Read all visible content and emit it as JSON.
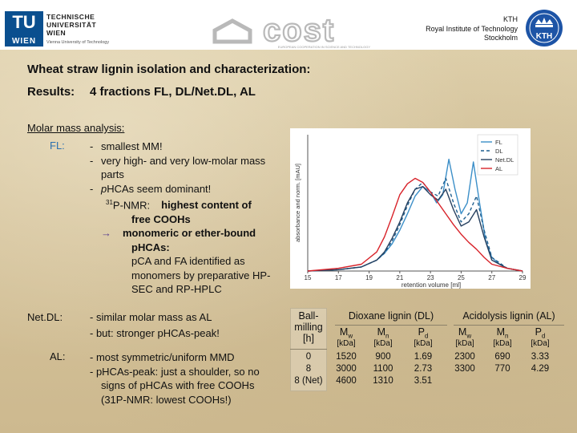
{
  "header": {
    "tu_wordmark": "TU WIEN",
    "tu_name_lines": [
      "TECHNISCHE",
      "UNIVERSITÄT",
      "WIEN"
    ],
    "tu_subtitle": "Vienna University of Technology",
    "cost_wordmark": "cost",
    "cost_tagline": "EUROPEAN COOPERATION IN SCIENCE AND TECHNOLOGY",
    "kth_lines": [
      "KTH",
      "Royal Institute of Technology",
      "Stockholm"
    ],
    "kth_logo_text": "KTH"
  },
  "title": "Wheat straw lignin isolation and characterization:",
  "results": {
    "label": "Results:",
    "value": "4 fractions FL, DL/Net.DL, AL"
  },
  "molar_heading": "Molar mass analysis:",
  "fl": {
    "label": "FL:",
    "b1": "smallest MM!",
    "b2a": "very high- and very low-molar mass",
    "b2b": "parts",
    "b3": "p",
    "b3rest": "HCAs seem dominant!",
    "nmr_sup": "31",
    "nmr_label": "P-NMR:",
    "nmr_value": "highest content of",
    "nmr_value2": "free COOHs",
    "arrow": "→",
    "arrow_text": "monomeric or ether-bound",
    "arrow_text2": "pHCAs:",
    "pca_line1": "pCA and FA identified as",
    "pca_line2": "monomers by preparative HP-",
    "pca_line3": "SEC and RP-HPLC"
  },
  "netdl": {
    "label": "Net.DL:",
    "l1": "-  similar molar mass as AL",
    "l2": "-  but: stronger pHCAs-peak!"
  },
  "al": {
    "label": "AL:",
    "l1": "-  most symmetric/uniform MMD",
    "l2": "-  pHCAs-peak: just a shoulder, so no",
    "l3": "signs of pHCAs with free COOHs",
    "l4": "(31P-NMR: lowest COOHs!)"
  },
  "chart_data": {
    "type": "line",
    "xlabel": "retention volume [ml]",
    "ylabel": "absorbance and norm. [mAU]",
    "xlim": [
      15,
      29
    ],
    "xticks": [
      15,
      17,
      19,
      21,
      23,
      25,
      27,
      29
    ],
    "ylim": [
      0,
      1
    ],
    "legend": [
      "FL",
      "DL",
      "Net.DL",
      "AL"
    ],
    "legend_position": "top-right",
    "grid": false,
    "series": [
      {
        "name": "FL",
        "color": "#3c8fc8",
        "dash": "solid",
        "x": [
          15,
          17,
          18.5,
          19.5,
          20,
          20.5,
          21,
          21.5,
          22,
          22.5,
          23,
          23.4,
          23.8,
          24.2,
          24.6,
          25,
          25.4,
          25.8,
          26.2,
          26.6,
          27,
          27.5,
          28,
          29
        ],
        "y": [
          0.0,
          0.01,
          0.03,
          0.08,
          0.13,
          0.2,
          0.3,
          0.42,
          0.55,
          0.62,
          0.58,
          0.5,
          0.56,
          0.82,
          0.6,
          0.42,
          0.5,
          0.8,
          0.5,
          0.22,
          0.1,
          0.05,
          0.02,
          0.0
        ]
      },
      {
        "name": "DL",
        "color": "#1f5f8f",
        "dash": "4,3",
        "x": [
          15,
          17,
          18.5,
          19.5,
          20,
          20.5,
          21,
          21.5,
          22,
          22.5,
          23,
          23.5,
          24,
          24.5,
          25,
          25.5,
          26,
          26.5,
          27,
          28,
          29
        ],
        "y": [
          0.0,
          0.01,
          0.03,
          0.08,
          0.13,
          0.22,
          0.34,
          0.48,
          0.6,
          0.65,
          0.58,
          0.55,
          0.68,
          0.5,
          0.36,
          0.42,
          0.55,
          0.3,
          0.1,
          0.02,
          0.0
        ]
      },
      {
        "name": "Net.DL",
        "color": "#27405f",
        "dash": "solid",
        "x": [
          15,
          17,
          18.5,
          19.5,
          20,
          20.5,
          21,
          21.5,
          22,
          22.5,
          23,
          23.5,
          24,
          24.5,
          25,
          25.5,
          26,
          26.5,
          27,
          28,
          29
        ],
        "y": [
          0.0,
          0.01,
          0.03,
          0.08,
          0.14,
          0.24,
          0.36,
          0.5,
          0.6,
          0.62,
          0.56,
          0.52,
          0.6,
          0.45,
          0.33,
          0.36,
          0.45,
          0.25,
          0.08,
          0.02,
          0.0
        ]
      },
      {
        "name": "AL",
        "color": "#d8232a",
        "dash": "solid",
        "x": [
          15,
          17,
          18.5,
          19.5,
          20,
          20.5,
          21,
          21.5,
          22,
          22.5,
          23,
          23.5,
          24,
          24.5,
          25,
          25.5,
          26,
          26.5,
          27,
          28,
          29
        ],
        "y": [
          0.0,
          0.02,
          0.05,
          0.14,
          0.25,
          0.4,
          0.56,
          0.64,
          0.68,
          0.65,
          0.58,
          0.5,
          0.42,
          0.34,
          0.27,
          0.21,
          0.16,
          0.1,
          0.05,
          0.02,
          0.0
        ]
      }
    ]
  },
  "table": {
    "col0_header": [
      "Ball-",
      "milling",
      "[h]"
    ],
    "group1": "Dioxane lignin (DL)",
    "group2": "Acidolysis lignin (AL)",
    "mw": "M",
    "mw_sub": "w",
    "mn": "M",
    "mn_sub": "n",
    "pd": "P",
    "pd_sub": "d",
    "unit": "[kDa]",
    "milling": [
      "0",
      "8",
      "8 (Net)"
    ],
    "dl_mw": [
      "1520",
      "3000",
      "4600"
    ],
    "dl_mn": [
      "900",
      "1100",
      "1310"
    ],
    "dl_pd": [
      "1.69",
      "2.73",
      "3.51"
    ],
    "al_mw": [
      "2300",
      "3300"
    ],
    "al_mn": [
      "690",
      "770"
    ],
    "al_pd": [
      "3.33",
      "4.29"
    ]
  },
  "colors": {
    "fl_label": "#2a6fb0",
    "tu_blue": "#0a4f8f",
    "kth_blue": "#1d54a6",
    "background": "#d8c8a2"
  }
}
